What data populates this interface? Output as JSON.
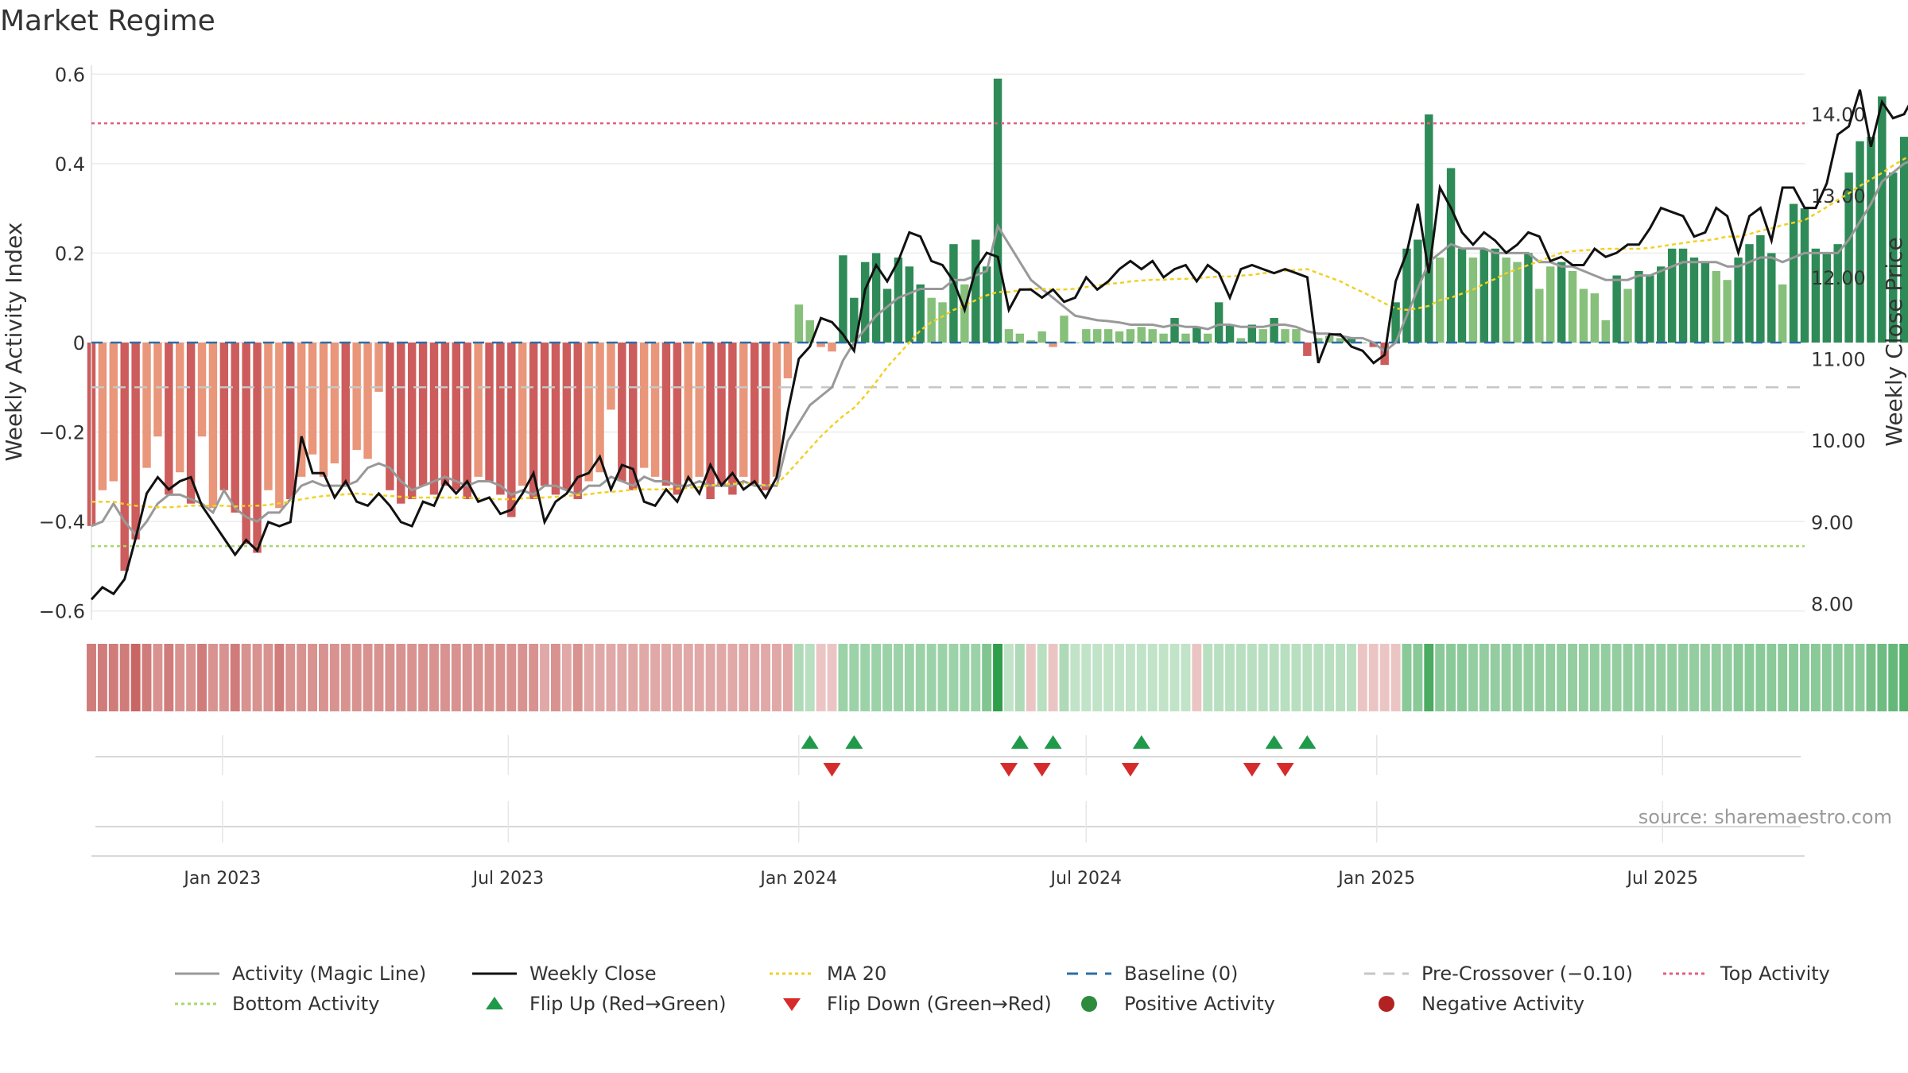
{
  "title": "Market Regime",
  "source": "source: sharemaestro.com",
  "colors": {
    "magic_line": "#999999",
    "close": "#111111",
    "ma20": "#f2d024",
    "baseline": "#2b6ea8",
    "pre_crossover": "#c6c6c6",
    "top_activity": "#e0607e",
    "bottom_activity": "#a8d86a",
    "flip_up": "#1f9a4a",
    "flip_down": "#d62b2b",
    "positive": "#2e8b3e",
    "negative": "#b22222",
    "pos_strong": "#2e8b57",
    "pos_light": "#86c07a",
    "neg_strong": "#cd5c5c",
    "neg_light": "#e9967a"
  },
  "legend": [
    {
      "label": "Activity (Magic Line)",
      "symbol": "line",
      "color": "#999999",
      "dash": ""
    },
    {
      "label": "Weekly Close",
      "symbol": "line",
      "color": "#111111",
      "dash": ""
    },
    {
      "label": "MA 20",
      "symbol": "line",
      "color": "#f2d024",
      "dash": "4,4"
    },
    {
      "label": "Baseline (0)",
      "symbol": "line",
      "color": "#2b6ea8",
      "dash": "14,10"
    },
    {
      "label": "Pre-Crossover (−0.10)",
      "symbol": "line",
      "color": "#c6c6c6",
      "dash": "14,10"
    },
    {
      "label": "Top Activity",
      "symbol": "line",
      "color": "#e0607e",
      "dash": "4,4"
    },
    {
      "label": "Bottom Activity",
      "symbol": "line",
      "color": "#a8d86a",
      "dash": "4,4"
    },
    {
      "label": "Flip Up (Red→Green)",
      "symbol": "tri-up",
      "color": "#1f9a4a",
      "dash": ""
    },
    {
      "label": "Flip Down (Green→Red)",
      "symbol": "tri-down",
      "color": "#d62b2b",
      "dash": ""
    },
    {
      "label": "Positive Activity",
      "symbol": "dot",
      "color": "#2e8b3e",
      "dash": ""
    },
    {
      "label": "Negative Activity",
      "symbol": "dot",
      "color": "#b22222",
      "dash": ""
    }
  ],
  "chart_data": {
    "type": "bar",
    "ylabel_left": "Weekly Activity Index",
    "ylabel_right": "Weekly Close Price",
    "ylim_left": [
      -0.62,
      0.62
    ],
    "ylim_right": [
      7.8,
      14.6
    ],
    "yticks_left": [
      {
        "value": 0.6,
        "label": "0.6"
      },
      {
        "value": 0.4,
        "label": "0.4"
      },
      {
        "value": 0.2,
        "label": "0.2"
      },
      {
        "value": 0.0,
        "label": "0"
      },
      {
        "value": -0.2,
        "label": "−0.2"
      },
      {
        "value": -0.4,
        "label": "−0.4"
      },
      {
        "value": -0.6,
        "label": "−0.6"
      }
    ],
    "yticks_right": [
      {
        "value": 14,
        "label": "14.00"
      },
      {
        "value": 13,
        "label": "13.00"
      },
      {
        "value": 12,
        "label": "12.00"
      },
      {
        "value": 11,
        "label": "11.00"
      },
      {
        "value": 10,
        "label": "10.00"
      },
      {
        "value": 9,
        "label": "9.00"
      },
      {
        "value": 8,
        "label": "8.00"
      }
    ],
    "xlim": [
      "2022-10-10",
      "2025-09-29"
    ],
    "xticks": [
      {
        "date": "2023-01-01",
        "label": "Jan 2023"
      },
      {
        "date": "2023-07-01",
        "label": "Jul 2023"
      },
      {
        "date": "2024-01-01",
        "label": "Jan 2024"
      },
      {
        "date": "2024-07-01",
        "label": "Jul 2024"
      },
      {
        "date": "2025-01-01",
        "label": "Jan 2025"
      },
      {
        "date": "2025-07-01",
        "label": "Jul 2025"
      }
    ],
    "reference_lines": {
      "baseline": 0,
      "pre_crossover": -0.1,
      "top_activity": 0.49,
      "bottom_activity": -0.455
    },
    "start_date": "2022-10-10",
    "interval_days": 7,
    "activity": [
      -0.41,
      -0.33,
      -0.31,
      -0.51,
      -0.44,
      -0.28,
      -0.21,
      -0.34,
      -0.29,
      -0.36,
      -0.21,
      -0.37,
      -0.33,
      -0.38,
      -0.45,
      -0.47,
      -0.33,
      -0.37,
      -0.35,
      -0.3,
      -0.25,
      -0.3,
      -0.27,
      -0.32,
      -0.24,
      -0.26,
      -0.11,
      -0.33,
      -0.36,
      -0.35,
      -0.32,
      -0.34,
      -0.32,
      -0.33,
      -0.35,
      -0.3,
      -0.31,
      -0.34,
      -0.39,
      -0.32,
      -0.35,
      -0.32,
      -0.34,
      -0.33,
      -0.35,
      -0.31,
      -0.29,
      -0.15,
      -0.31,
      -0.33,
      -0.28,
      -0.3,
      -0.32,
      -0.34,
      -0.31,
      -0.3,
      -0.35,
      -0.32,
      -0.34,
      -0.3,
      -0.32,
      -0.33,
      -0.3,
      -0.08,
      0.085,
      0.05,
      -0.01,
      -0.02,
      0.195,
      0.1,
      0.18,
      0.2,
      0.12,
      0.19,
      0.17,
      0.13,
      0.1,
      0.09,
      0.22,
      0.13,
      0.23,
      0.17,
      0.59,
      0.03,
      0.02,
      0.005,
      0.025,
      -0.01,
      0.06,
      0.0,
      0.03,
      0.03,
      0.03,
      0.025,
      0.03,
      0.035,
      0.03,
      0.02,
      0.055,
      0.02,
      0.035,
      0.02,
      0.09,
      0.04,
      0.01,
      0.04,
      0.03,
      0.055,
      0.03,
      0.03,
      -0.03,
      0.01,
      0.015,
      0.01,
      0.01,
      0.0,
      -0.01,
      -0.05,
      0.09,
      0.21,
      0.23,
      0.51,
      0.19,
      0.39,
      0.21,
      0.19,
      0.21,
      0.21,
      0.19,
      0.18,
      0.2,
      0.12,
      0.17,
      0.18,
      0.16,
      0.12,
      0.11,
      0.05,
      0.15,
      0.12,
      0.16,
      0.15,
      0.17,
      0.21,
      0.21,
      0.19,
      0.18,
      0.16,
      0.14,
      0.19,
      0.22,
      0.24,
      0.2,
      0.13,
      0.31,
      0.3,
      0.21,
      0.2,
      0.22,
      0.38,
      0.45,
      0.46,
      0.55,
      0.38,
      0.46,
      0.43,
      0.41,
      0.43,
      0.38,
      0.47,
      0.45,
      0.47,
      0.44,
      0.26,
      0.31,
      0.29,
      0.44,
      0.29,
      0.29,
      0.29,
      0.34
    ],
    "magic_line": [
      -0.41,
      -0.4,
      -0.36,
      -0.4,
      -0.43,
      -0.4,
      -0.36,
      -0.34,
      -0.34,
      -0.35,
      -0.36,
      -0.38,
      -0.33,
      -0.37,
      -0.39,
      -0.4,
      -0.38,
      -0.38,
      -0.35,
      -0.32,
      -0.31,
      -0.32,
      -0.32,
      -0.32,
      -0.31,
      -0.28,
      -0.27,
      -0.28,
      -0.31,
      -0.33,
      -0.32,
      -0.31,
      -0.3,
      -0.31,
      -0.32,
      -0.31,
      -0.31,
      -0.32,
      -0.34,
      -0.33,
      -0.34,
      -0.32,
      -0.32,
      -0.33,
      -0.34,
      -0.32,
      -0.32,
      -0.3,
      -0.31,
      -0.32,
      -0.3,
      -0.31,
      -0.31,
      -0.32,
      -0.32,
      -0.31,
      -0.32,
      -0.32,
      -0.32,
      -0.31,
      -0.32,
      -0.32,
      -0.32,
      -0.22,
      -0.18,
      -0.14,
      -0.12,
      -0.1,
      -0.04,
      0.0,
      0.03,
      0.06,
      0.08,
      0.1,
      0.11,
      0.12,
      0.12,
      0.12,
      0.14,
      0.14,
      0.15,
      0.16,
      0.26,
      0.22,
      0.18,
      0.14,
      0.12,
      0.1,
      0.08,
      0.06,
      0.055,
      0.05,
      0.048,
      0.045,
      0.04,
      0.04,
      0.04,
      0.035,
      0.04,
      0.035,
      0.035,
      0.03,
      0.04,
      0.04,
      0.035,
      0.035,
      0.035,
      0.04,
      0.04,
      0.035,
      0.025,
      0.02,
      0.02,
      0.015,
      0.01,
      0.01,
      0.0,
      -0.02,
      0.0,
      0.06,
      0.12,
      0.18,
      0.2,
      0.22,
      0.21,
      0.21,
      0.21,
      0.2,
      0.2,
      0.2,
      0.2,
      0.18,
      0.18,
      0.17,
      0.17,
      0.16,
      0.15,
      0.14,
      0.14,
      0.14,
      0.15,
      0.15,
      0.16,
      0.17,
      0.18,
      0.18,
      0.18,
      0.18,
      0.17,
      0.17,
      0.18,
      0.19,
      0.19,
      0.18,
      0.19,
      0.2,
      0.2,
      0.2,
      0.2,
      0.23,
      0.27,
      0.31,
      0.36,
      0.38,
      0.4,
      0.41,
      0.41,
      0.42,
      0.42,
      0.43,
      0.44,
      0.45,
      0.44,
      0.41,
      0.38,
      0.36,
      0.38,
      0.36,
      0.35,
      0.34,
      0.33
    ],
    "close": [
      8.05,
      8.2,
      8.12,
      8.3,
      8.8,
      9.35,
      9.55,
      9.4,
      9.5,
      9.55,
      9.2,
      9.0,
      8.8,
      8.6,
      8.78,
      8.65,
      9.0,
      8.95,
      9.0,
      10.05,
      9.6,
      9.6,
      9.3,
      9.5,
      9.25,
      9.2,
      9.35,
      9.2,
      9.0,
      8.95,
      9.25,
      9.2,
      9.5,
      9.35,
      9.5,
      9.25,
      9.3,
      9.1,
      9.15,
      9.35,
      9.6,
      9.0,
      9.25,
      9.35,
      9.55,
      9.6,
      9.8,
      9.4,
      9.7,
      9.65,
      9.25,
      9.2,
      9.4,
      9.25,
      9.55,
      9.35,
      9.7,
      9.45,
      9.6,
      9.4,
      9.5,
      9.3,
      9.55,
      10.35,
      11.0,
      11.15,
      11.5,
      11.45,
      11.3,
      11.1,
      11.85,
      12.15,
      11.95,
      12.2,
      12.55,
      12.5,
      12.2,
      12.15,
      11.95,
      11.6,
      12.1,
      12.3,
      12.25,
      11.6,
      11.85,
      11.85,
      11.75,
      11.85,
      11.7,
      11.75,
      12.0,
      11.85,
      11.95,
      12.1,
      12.2,
      12.1,
      12.2,
      12.0,
      12.1,
      12.15,
      11.95,
      12.15,
      12.05,
      11.75,
      12.1,
      12.15,
      12.1,
      12.05,
      12.1,
      12.05,
      12.0,
      10.95,
      11.3,
      11.3,
      11.15,
      11.1,
      10.95,
      11.05,
      11.95,
      12.3,
      12.9,
      12.05,
      13.1,
      12.85,
      12.55,
      12.4,
      12.55,
      12.45,
      12.3,
      12.4,
      12.55,
      12.5,
      12.2,
      12.25,
      12.15,
      12.15,
      12.35,
      12.25,
      12.3,
      12.4,
      12.4,
      12.6,
      12.85,
      12.8,
      12.75,
      12.5,
      12.55,
      12.85,
      12.75,
      12.3,
      12.75,
      12.85,
      12.45,
      13.1,
      13.1,
      12.85,
      12.85,
      13.15,
      13.75,
      13.85,
      14.3,
      13.6,
      14.15,
      13.95,
      14.0,
      14.25,
      14.05,
      14.2,
      14.05,
      14.2,
      14.1,
      13.85,
      14.25,
      14.3,
      14.05,
      14.15,
      14.2,
      14.2,
      14.22,
      14.1
    ],
    "ma20": [
      9.25,
      9.25,
      9.25,
      9.22,
      9.2,
      9.19,
      9.18,
      9.18,
      9.19,
      9.2,
      9.2,
      9.2,
      9.2,
      9.19,
      9.2,
      9.2,
      9.21,
      9.23,
      9.25,
      9.28,
      9.3,
      9.32,
      9.33,
      9.34,
      9.35,
      9.34,
      9.33,
      9.32,
      9.31,
      9.3,
      9.3,
      9.3,
      9.3,
      9.3,
      9.3,
      9.29,
      9.28,
      9.28,
      9.28,
      9.29,
      9.3,
      9.3,
      9.31,
      9.32,
      9.33,
      9.34,
      9.36,
      9.37,
      9.38,
      9.4,
      9.4,
      9.4,
      9.4,
      9.41,
      9.42,
      9.43,
      9.45,
      9.46,
      9.47,
      9.47,
      9.47,
      9.45,
      9.46,
      9.6,
      9.75,
      9.9,
      10.05,
      10.18,
      10.3,
      10.4,
      10.55,
      10.72,
      10.9,
      11.05,
      11.2,
      11.35,
      11.45,
      11.52,
      11.6,
      11.65,
      11.72,
      11.78,
      11.82,
      11.82,
      11.84,
      11.86,
      11.86,
      11.85,
      11.85,
      11.86,
      11.88,
      11.9,
      11.92,
      11.93,
      11.95,
      11.96,
      11.97,
      11.97,
      11.98,
      11.98,
      11.99,
      12.0,
      12.01,
      12.01,
      12.02,
      12.03,
      12.05,
      12.06,
      12.08,
      12.09,
      12.1,
      12.05,
      12.0,
      11.95,
      11.88,
      11.82,
      11.75,
      11.68,
      11.62,
      11.6,
      11.62,
      11.65,
      11.72,
      11.75,
      11.8,
      11.85,
      11.92,
      11.98,
      12.05,
      12.1,
      12.15,
      12.2,
      12.25,
      12.3,
      12.32,
      12.33,
      12.34,
      12.35,
      12.35,
      12.35,
      12.35,
      12.36,
      12.38,
      12.4,
      12.42,
      12.44,
      12.45,
      12.47,
      12.5,
      12.5,
      12.53,
      12.57,
      12.6,
      12.64,
      12.67,
      12.7,
      12.78,
      12.86,
      12.95,
      13.03,
      13.12,
      13.2,
      13.28,
      13.37,
      13.45,
      13.53,
      13.6,
      13.68,
      13.75,
      13.8,
      13.87,
      13.93,
      13.97,
      14.02,
      14.06,
      14.1,
      14.13,
      14.15
    ],
    "regime_strip": [
      -0.7,
      -0.7,
      -0.7,
      -0.7,
      -0.85,
      -0.7,
      -0.55,
      -0.7,
      -0.55,
      -0.55,
      -0.7,
      -0.55,
      -0.55,
      -0.7,
      -0.55,
      -0.55,
      -0.55,
      -0.7,
      -0.55,
      -0.55,
      -0.55,
      -0.55,
      -0.55,
      -0.55,
      -0.55,
      -0.55,
      -0.55,
      -0.55,
      -0.55,
      -0.55,
      -0.55,
      -0.55,
      -0.55,
      -0.55,
      -0.55,
      -0.55,
      -0.55,
      -0.55,
      -0.55,
      -0.55,
      -0.55,
      -0.4,
      -0.55,
      -0.4,
      -0.55,
      -0.4,
      -0.4,
      -0.4,
      -0.4,
      -0.4,
      -0.4,
      -0.4,
      -0.4,
      -0.4,
      -0.4,
      -0.4,
      -0.4,
      -0.4,
      -0.4,
      -0.4,
      -0.4,
      -0.4,
      -0.4,
      -0.4,
      0.3,
      0.25,
      -0.2,
      -0.2,
      0.4,
      0.4,
      0.4,
      0.4,
      0.4,
      0.4,
      0.4,
      0.4,
      0.4,
      0.4,
      0.4,
      0.4,
      0.4,
      0.55,
      1.0,
      0.2,
      0.3,
      -0.2,
      0.25,
      -0.2,
      0.3,
      0.2,
      0.2,
      0.2,
      0.2,
      0.2,
      0.2,
      0.2,
      0.2,
      0.2,
      0.2,
      0.2,
      -0.2,
      0.25,
      0.25,
      0.25,
      0.25,
      0.25,
      0.25,
      0.25,
      0.25,
      0.25,
      0.25,
      0.25,
      0.25,
      0.25,
      0.25,
      -0.2,
      -0.2,
      -0.2,
      -0.2,
      0.5,
      0.5,
      0.85,
      0.5,
      0.5,
      0.5,
      0.45,
      0.45,
      0.45,
      0.45,
      0.45,
      0.45,
      0.45,
      0.45,
      0.45,
      0.45,
      0.45,
      0.45,
      0.45,
      0.45,
      0.45,
      0.45,
      0.45,
      0.45,
      0.45,
      0.45,
      0.45,
      0.45,
      0.45,
      0.45,
      0.5,
      0.5,
      0.5,
      0.5,
      0.5,
      0.5,
      0.5,
      0.5,
      0.5,
      0.5,
      0.5,
      0.5,
      0.6,
      0.65,
      0.7,
      0.8,
      0.75,
      0.8,
      0.8,
      0.75,
      0.8,
      0.75,
      0.8,
      0.75,
      0.8,
      0.75,
      0.65,
      0.7,
      0.65,
      0.8,
      0.65,
      0.65,
      0.6,
      0.65
    ],
    "flip_up_weeks": [
      65,
      69,
      84,
      87,
      95,
      107,
      110
    ],
    "flip_down_weeks": [
      67,
      83,
      86,
      94,
      105,
      108
    ]
  }
}
